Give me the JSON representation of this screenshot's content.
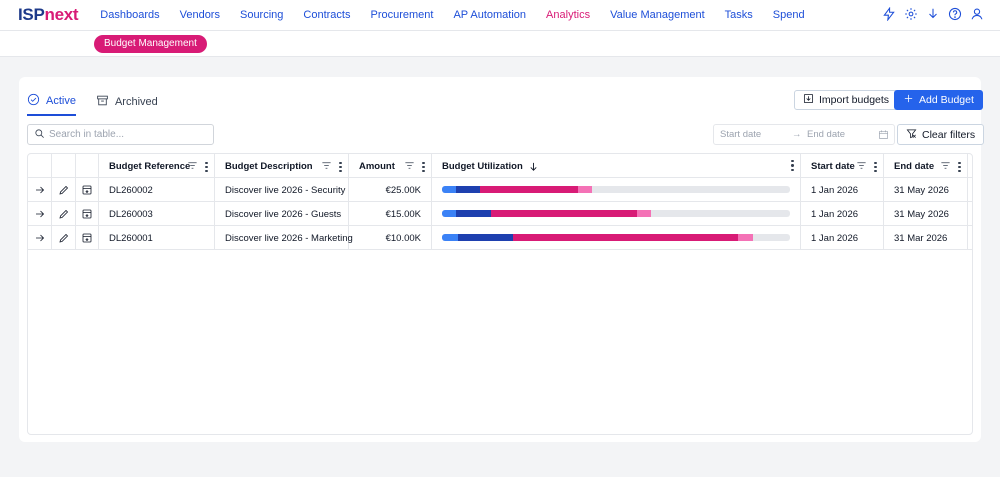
{
  "app": {
    "logo_part1": "ISP",
    "logo_part2": "next"
  },
  "nav": {
    "items": [
      {
        "label": "Dashboards",
        "active": false
      },
      {
        "label": "Vendors",
        "active": false
      },
      {
        "label": "Sourcing",
        "active": false
      },
      {
        "label": "Contracts",
        "active": false
      },
      {
        "label": "Procurement",
        "active": false
      },
      {
        "label": "AP Automation",
        "active": false
      },
      {
        "label": "Analytics",
        "active": true
      },
      {
        "label": "Value Management",
        "active": false
      },
      {
        "label": "Tasks",
        "active": false
      },
      {
        "label": "Spend",
        "active": false
      }
    ],
    "icons": [
      "lightning-icon",
      "settings-icon",
      "download-icon",
      "help-icon",
      "user-icon"
    ]
  },
  "subnav": {
    "pill_label": "Budget Management"
  },
  "tabs": [
    {
      "label": "Active",
      "icon": "check-circle-icon",
      "active": true
    },
    {
      "label": "Archived",
      "icon": "archive-icon",
      "active": false
    }
  ],
  "toolbar": {
    "import_label": "Import budgets",
    "add_label": "Add Budget",
    "clear_filters_label": "Clear filters",
    "search_placeholder": "Search in table...",
    "start_date_placeholder": "Start date",
    "end_date_placeholder": "End date",
    "range_arrow": "→"
  },
  "table": {
    "columns": [
      {
        "label": "Budget Reference"
      },
      {
        "label": "Budget Description"
      },
      {
        "label": "Amount"
      },
      {
        "label": "Budget Utilization",
        "sort": "desc"
      },
      {
        "label": "Start date"
      },
      {
        "label": "End date"
      }
    ],
    "rows": [
      {
        "reference": "DL260002",
        "description": "Discover live 2026 - Security",
        "amount": "€25.00K",
        "utilization": [
          0.04,
          0.07,
          0.28,
          0.04
        ],
        "start": "1 Jan 2026",
        "end": "31 May 2026"
      },
      {
        "reference": "DL260003",
        "description": "Discover live 2026 - Guests",
        "amount": "€15.00K",
        "utilization": [
          0.04,
          0.1,
          0.42,
          0.04
        ],
        "start": "1 Jan 2026",
        "end": "31 May 2026"
      },
      {
        "reference": "DL260001",
        "description": "Discover live 2026 - Marketing",
        "amount": "€10.00K",
        "utilization": [
          0.045,
          0.16,
          0.645,
          0.045
        ],
        "start": "1 Jan 2026",
        "end": "31 Mar 2026"
      }
    ],
    "utilization_colors": [
      "#3b82f6",
      "#1e40af",
      "#d81b76",
      "#f472b6"
    ]
  }
}
